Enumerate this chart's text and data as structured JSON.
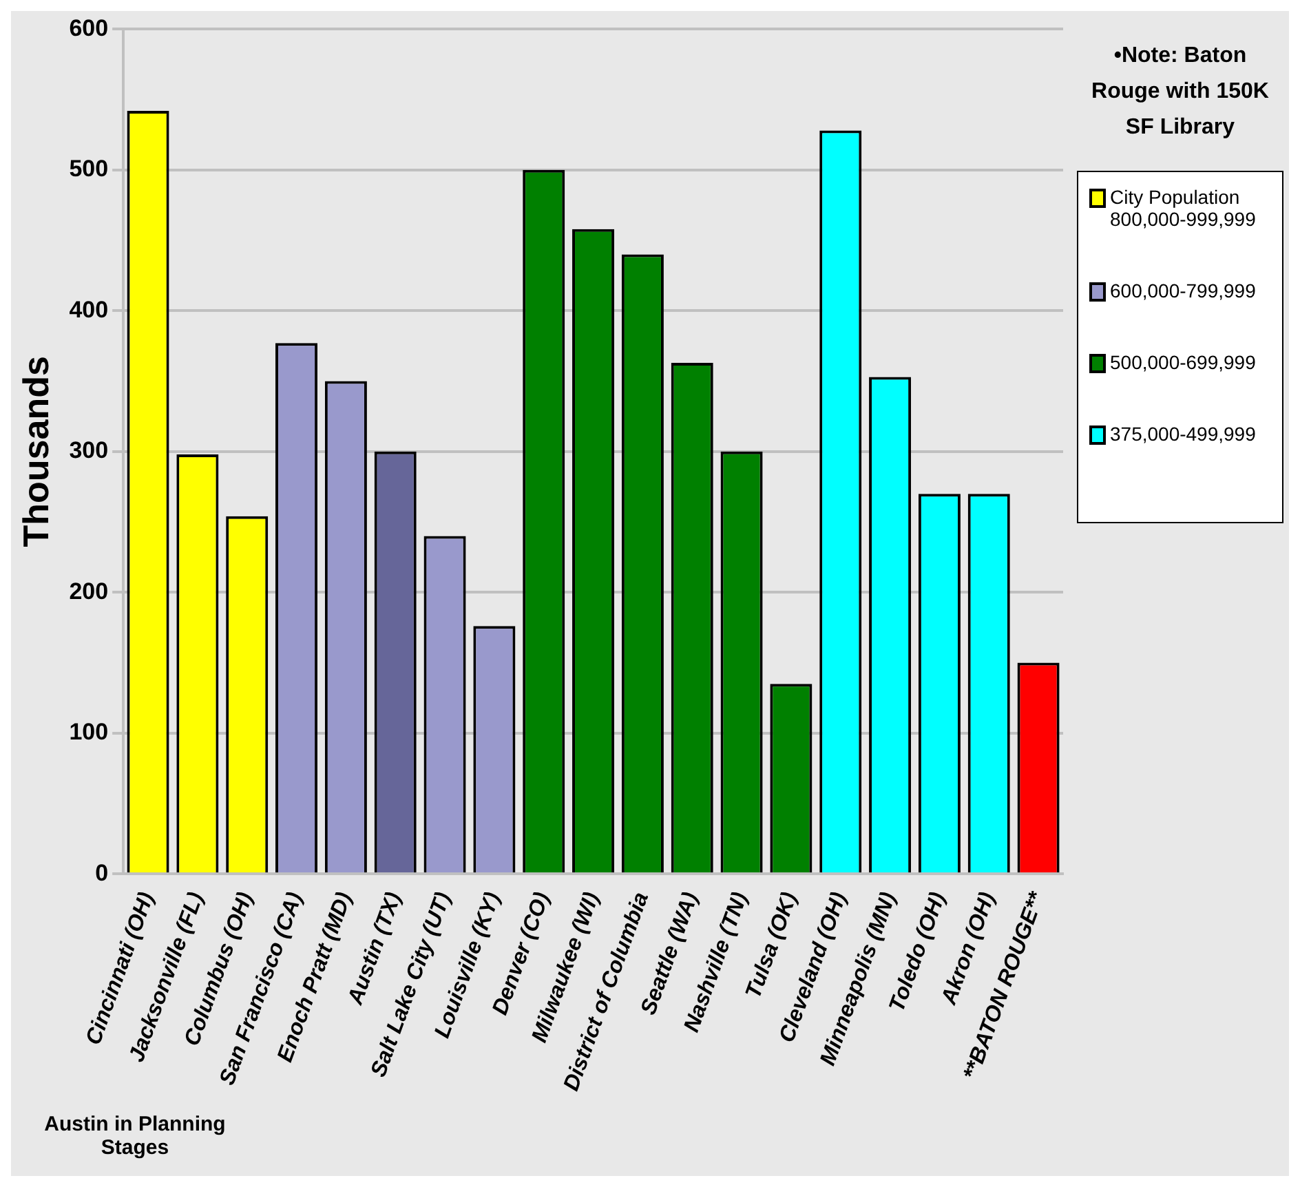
{
  "chart_data": {
    "type": "bar",
    "ylabel": "Thousands",
    "categories": [
      "Cincinnati (OH)",
      "Jacksonville (FL)",
      "Columbus (OH)",
      "San Francisco (CA)",
      "Enoch Pratt (MD)",
      "Austin (TX)",
      "Salt Lake City (UT)",
      "Louisville (KY)",
      "Denver (CO)",
      "Milwaukee (WI)",
      "District of Columbia",
      "Seattle (WA)",
      "Nashville (TN)",
      "Tulsa (OK)",
      "Cleveland (OH)",
      "Minneapolis (MN)",
      "Toledo (OH)",
      "Akron (OH)",
      "**BATON ROUGE**"
    ],
    "series": [
      {
        "name": "City Population 800,000-999,999",
        "color": "#ffff00",
        "values": [
          542,
          298,
          254,
          null,
          null,
          null,
          null,
          null,
          null,
          null,
          null,
          null,
          null,
          null,
          null,
          null,
          null,
          null,
          null
        ]
      },
      {
        "name": "600,000-799,999",
        "color": "#9999cc",
        "colors": [
          "#9999cc",
          "#9999cc",
          "#9999cc",
          "#9999cc",
          "#9999cc",
          "#666699",
          "#9999cc",
          "#9999cc",
          "#9999cc",
          "#9999cc",
          "#9999cc",
          "#9999cc",
          "#9999cc",
          "#9999cc",
          "#9999cc",
          "#9999cc",
          "#9999cc",
          "#9999cc",
          "#9999cc"
        ],
        "values": [
          null,
          null,
          null,
          377,
          350,
          300,
          240,
          176,
          null,
          null,
          null,
          null,
          null,
          null,
          null,
          null,
          null,
          null,
          null
        ]
      },
      {
        "name": "500,000-699,999",
        "color": "#008000",
        "values": [
          null,
          null,
          null,
          null,
          null,
          null,
          null,
          null,
          500,
          458,
          440,
          363,
          300,
          135,
          null,
          null,
          null,
          null,
          null
        ]
      },
      {
        "name": "375,000-499,999",
        "color": "#00ffff",
        "values": [
          null,
          null,
          null,
          null,
          null,
          null,
          null,
          null,
          null,
          null,
          null,
          null,
          null,
          null,
          528,
          353,
          270,
          270,
          null
        ]
      },
      {
        "color": "#ff0000",
        "values": [
          null,
          null,
          null,
          null,
          null,
          null,
          null,
          null,
          null,
          null,
          null,
          null,
          null,
          null,
          null,
          null,
          null,
          null,
          150
        ]
      }
    ],
    "ylim": [
      0,
      600
    ],
    "yticks": [
      0,
      100,
      200,
      300,
      400,
      500,
      600
    ],
    "grid": "y",
    "legend": "right",
    "annotations": [
      "•Note: Baton Rouge with 150K SF Library",
      "Austin in Planning Stages"
    ]
  }
}
